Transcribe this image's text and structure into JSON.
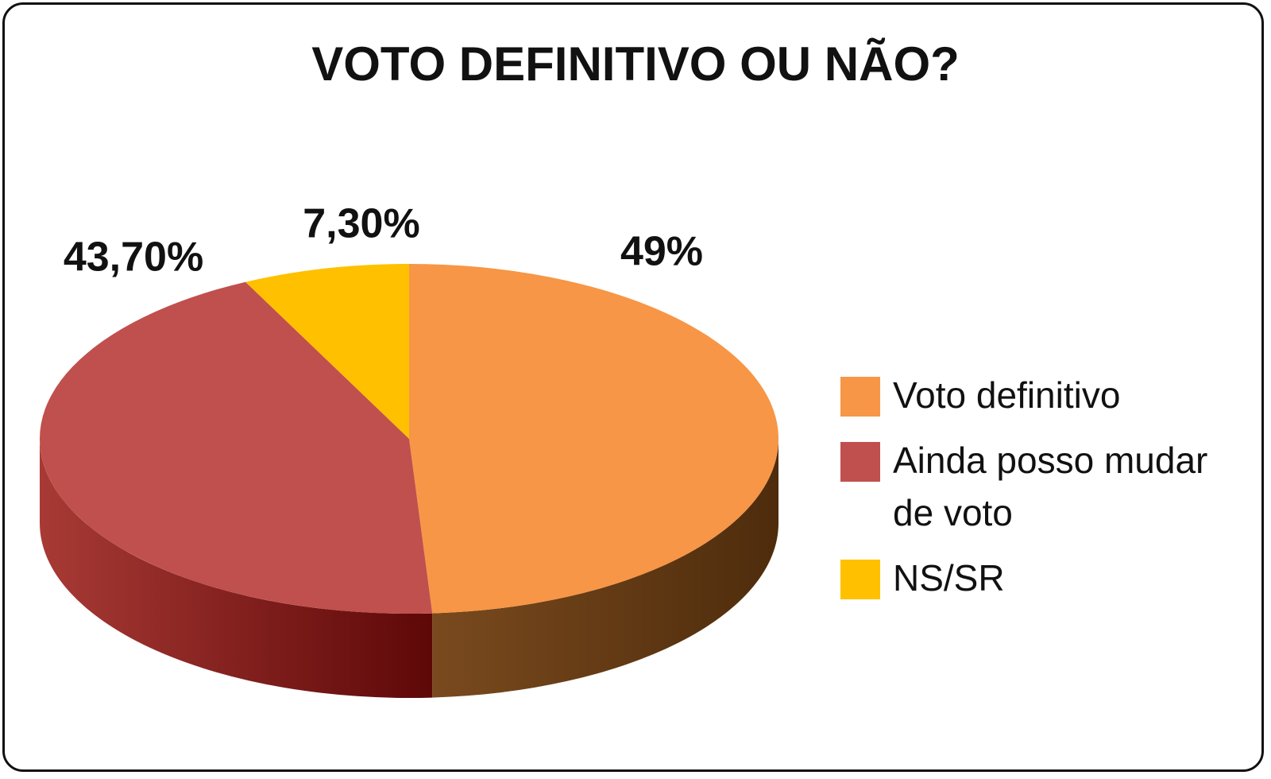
{
  "chart_data": {
    "type": "pie3d",
    "title": "VOTO DEFINITIVO OU NÃO?",
    "categories": [
      "Voto definitivo",
      "Ainda posso mudar de voto",
      "NS/SR"
    ],
    "values": [
      49,
      43.7,
      7.3
    ],
    "value_labels": [
      "49%",
      "43,70%",
      "7,30%"
    ],
    "colors": [
      "#f79646",
      "#c0504d",
      "#ffc000"
    ],
    "legend": "right"
  }
}
